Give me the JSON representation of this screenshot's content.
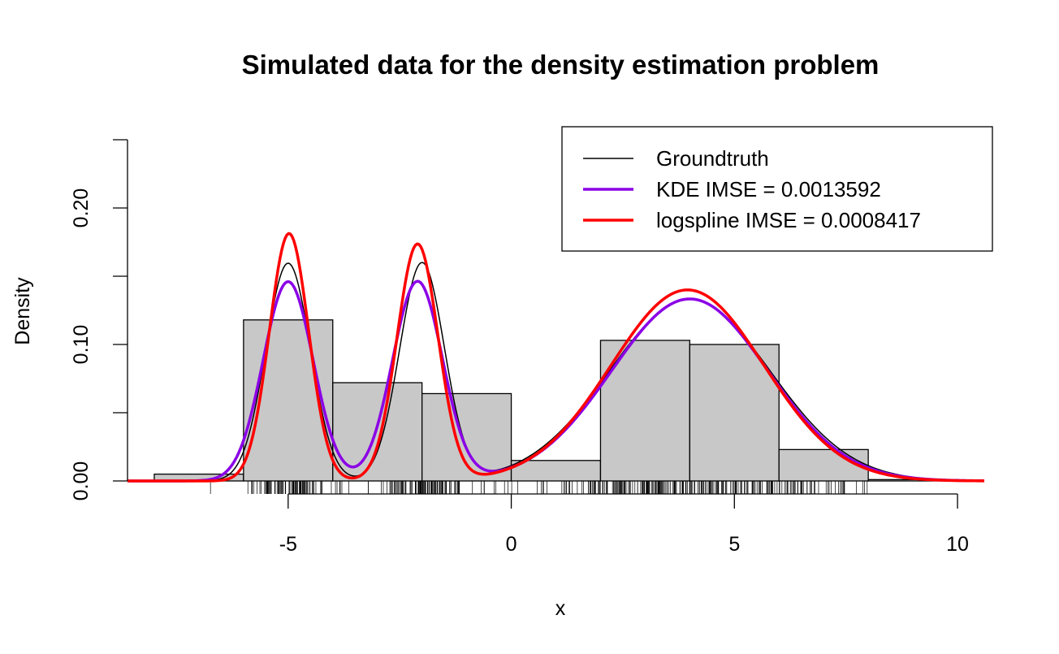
{
  "chart_data": {
    "type": "histogram",
    "title": "Simulated data for the density estimation problem",
    "xlabel": "x",
    "ylabel": "Density",
    "xlim": [
      -8.6,
      10.6
    ],
    "ylim": [
      0,
      0.25
    ],
    "x_ticks": [
      -5,
      0,
      5,
      10
    ],
    "y_ticks": [
      0.0,
      0.05,
      0.1,
      0.15,
      0.2,
      0.25
    ],
    "y_tick_labels": [
      "0.00",
      "",
      "0.10",
      "",
      "0.20",
      ""
    ],
    "x_tick_labels": [
      "-5",
      "0",
      "5",
      "10"
    ],
    "grid": false,
    "legend_position": "top-right",
    "histogram": {
      "bin_edges": [
        -8,
        -6,
        -4,
        -2,
        0,
        2,
        4,
        6,
        8,
        10
      ],
      "densities": [
        0.005,
        0.118,
        0.072,
        0.064,
        0.015,
        0.103,
        0.1,
        0.023,
        0.001
      ],
      "fill_color": "#c8c8c8",
      "edge_color": "#000000"
    },
    "series": [
      {
        "name": "Groundtruth",
        "color": "#000000",
        "role": "groundtruth",
        "components": [
          {
            "weight": 0.2,
            "mean": -5,
            "sd": 0.5
          },
          {
            "weight": 0.2,
            "mean": -2,
            "sd": 0.5
          },
          {
            "weight": 0.6,
            "mean": 4,
            "sd": 1.8
          }
        ]
      },
      {
        "name": "KDE IMSE = 0.0013592",
        "color": "#8b00e6",
        "role": "kde",
        "components": [
          {
            "weight": 0.205,
            "mean": -5.0,
            "sd": 0.56
          },
          {
            "weight": 0.205,
            "mean": -2.1,
            "sd": 0.56
          },
          {
            "weight": 0.585,
            "mean": 4.0,
            "sd": 1.75
          }
        ]
      },
      {
        "name": "logspline IMSE = 0.0008417",
        "color": "#ff0000",
        "role": "logspline",
        "components": [
          {
            "weight": 0.2,
            "mean": -4.98,
            "sd": 0.44
          },
          {
            "weight": 0.2,
            "mean": -2.1,
            "sd": 0.46
          },
          {
            "weight": 0.6,
            "mean": 3.95,
            "sd": 1.71
          }
        ]
      }
    ],
    "rug": {
      "count": 500,
      "components": [
        {
          "weight": 0.2,
          "mean": -5,
          "sd": 0.5
        },
        {
          "weight": 0.2,
          "mean": -2,
          "sd": 0.5
        },
        {
          "weight": 0.6,
          "mean": 4,
          "sd": 1.8
        }
      ],
      "range": [
        -6.8,
        8.8
      ]
    }
  }
}
